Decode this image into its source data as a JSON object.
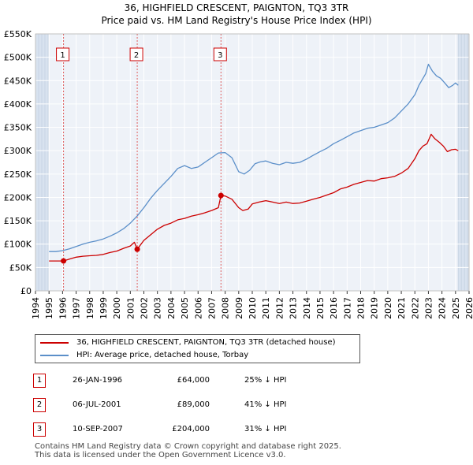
{
  "title_line1": "36, HIGHFIELD CRESCENT, PAIGNTON, TQ3 3TR",
  "title_line2": "Price paid vs. HM Land Registry's House Price Index (HPI)",
  "chart_data": {
    "type": "line",
    "xlim": [
      1994,
      2026
    ],
    "ylim": [
      0,
      550000
    ],
    "x_ticks": [
      1994,
      1995,
      1996,
      1997,
      1998,
      1999,
      2000,
      2001,
      2002,
      2003,
      2004,
      2005,
      2006,
      2007,
      2008,
      2009,
      2010,
      2011,
      2012,
      2013,
      2014,
      2015,
      2016,
      2017,
      2018,
      2019,
      2020,
      2021,
      2022,
      2023,
      2024,
      2025,
      2026
    ],
    "x_tick_labels": [
      "1994",
      "1995",
      "1996",
      "1997",
      "1998",
      "1999",
      "2000",
      "2001",
      "2002",
      "2003",
      "2004",
      "2005",
      "2006",
      "2007",
      "2008",
      "2009",
      "2010",
      "2011",
      "2012",
      "2013",
      "2014",
      "2015",
      "2016",
      "2017",
      "2018",
      "2019",
      "2020",
      "2021",
      "2022",
      "2023",
      "2024",
      "2025",
      "2026"
    ],
    "y_ticks": [
      0,
      50000,
      100000,
      150000,
      200000,
      250000,
      300000,
      350000,
      400000,
      450000,
      500000,
      550000
    ],
    "y_tick_labels": [
      "£0",
      "£50K",
      "£100K",
      "£150K",
      "£200K",
      "£250K",
      "£300K",
      "£350K",
      "£400K",
      "£450K",
      "£500K",
      "£550K"
    ],
    "data_range": [
      1995.0,
      2025.2
    ],
    "series": [
      {
        "name": "36, HIGHFIELD CRESCENT, PAIGNTON, TQ3 3TR (detached house)",
        "color": "#cc0000",
        "x": [
          1995.0,
          1995.5,
          1996.07,
          1996.5,
          1997.0,
          1997.5,
          1998.0,
          1998.5,
          1999.0,
          1999.5,
          2000.0,
          2000.5,
          2001.0,
          2001.3,
          2001.51,
          2002.0,
          2002.5,
          2003.0,
          2003.5,
          2004.0,
          2004.5,
          2005.0,
          2005.5,
          2006.0,
          2006.5,
          2007.0,
          2007.5,
          2007.69,
          2008.0,
          2008.5,
          2009.0,
          2009.3,
          2009.7,
          2010.0,
          2010.5,
          2011.0,
          2011.5,
          2012.0,
          2012.5,
          2013.0,
          2013.5,
          2014.0,
          2014.5,
          2015.0,
          2015.5,
          2016.0,
          2016.5,
          2017.0,
          2017.5,
          2018.0,
          2018.5,
          2019.0,
          2019.5,
          2020.0,
          2020.5,
          2021.0,
          2021.5,
          2022.0,
          2022.3,
          2022.6,
          2022.9,
          2023.2,
          2023.5,
          2023.8,
          2024.1,
          2024.4,
          2024.7,
          2025.0,
          2025.2
        ],
        "values": [
          64000,
          64000,
          64000,
          68000,
          72000,
          74000,
          75000,
          76000,
          78000,
          82000,
          85000,
          91000,
          96000,
          104000,
          89000,
          108000,
          120000,
          132000,
          140000,
          145000,
          152000,
          155000,
          160000,
          163000,
          167000,
          172000,
          178000,
          204000,
          203000,
          196000,
          178000,
          172000,
          175000,
          186000,
          190000,
          193000,
          190000,
          187000,
          190000,
          187000,
          188000,
          192000,
          196000,
          200000,
          205000,
          210000,
          218000,
          222000,
          228000,
          232000,
          236000,
          235000,
          240000,
          242000,
          245000,
          252000,
          262000,
          283000,
          300000,
          310000,
          315000,
          335000,
          325000,
          318000,
          310000,
          298000,
          302000,
          303000,
          300000
        ]
      },
      {
        "name": "HPI: Average price, detached house, Torbay",
        "color": "#5b8fc9",
        "x": [
          1995.0,
          1995.5,
          1996.0,
          1996.5,
          1997.0,
          1997.5,
          1998.0,
          1998.5,
          1999.0,
          1999.5,
          2000.0,
          2000.5,
          2001.0,
          2001.5,
          2002.0,
          2002.5,
          2003.0,
          2003.5,
          2004.0,
          2004.5,
          2005.0,
          2005.5,
          2006.0,
          2006.5,
          2007.0,
          2007.5,
          2008.0,
          2008.5,
          2009.0,
          2009.4,
          2009.8,
          2010.2,
          2010.6,
          2011.0,
          2011.5,
          2012.0,
          2012.5,
          2013.0,
          2013.5,
          2014.0,
          2014.5,
          2015.0,
          2015.5,
          2016.0,
          2016.5,
          2017.0,
          2017.5,
          2018.0,
          2018.5,
          2019.0,
          2019.5,
          2020.0,
          2020.5,
          2021.0,
          2021.5,
          2022.0,
          2022.3,
          2022.6,
          2022.8,
          2023.0,
          2023.3,
          2023.6,
          2023.9,
          2024.2,
          2024.5,
          2024.8,
          2025.0,
          2025.2
        ],
        "values": [
          84000,
          84000,
          86000,
          90000,
          95000,
          100000,
          104000,
          107000,
          111000,
          117000,
          124000,
          133000,
          145000,
          160000,
          178000,
          198000,
          215000,
          230000,
          245000,
          262000,
          268000,
          262000,
          265000,
          275000,
          285000,
          295000,
          296000,
          285000,
          255000,
          250000,
          258000,
          272000,
          276000,
          278000,
          273000,
          270000,
          275000,
          273000,
          275000,
          282000,
          290000,
          298000,
          305000,
          315000,
          322000,
          330000,
          338000,
          343000,
          348000,
          350000,
          355000,
          360000,
          370000,
          385000,
          400000,
          420000,
          440000,
          455000,
          465000,
          485000,
          470000,
          460000,
          455000,
          445000,
          435000,
          440000,
          445000,
          440000
        ]
      }
    ],
    "sales": [
      {
        "label": "1",
        "x": 1996.07,
        "value": 64000
      },
      {
        "label": "2",
        "x": 2001.51,
        "value": 89000
      },
      {
        "label": "3",
        "x": 2007.69,
        "value": 204000
      }
    ],
    "grid": true
  },
  "legend": {
    "property_label": "36, HIGHFIELD CRESCENT, PAIGNTON, TQ3 3TR (detached house)",
    "hpi_label": "HPI: Average price, detached house, Torbay"
  },
  "transactions": [
    {
      "num": "1",
      "date": "26-JAN-1996",
      "price": "£64,000",
      "hpi": "25% ↓ HPI"
    },
    {
      "num": "2",
      "date": "06-JUL-2001",
      "price": "£89,000",
      "hpi": "41% ↓ HPI"
    },
    {
      "num": "3",
      "date": "10-SEP-2007",
      "price": "£204,000",
      "hpi": "31% ↓ HPI"
    }
  ],
  "footer_line1": "Contains HM Land Registry data © Crown copyright and database right 2025.",
  "footer_line2": "This data is licensed under the Open Government Licence v3.0.",
  "colors": {
    "property": "#cc0000",
    "hpi": "#5b8fc9",
    "plot_bg": "#eef2f8",
    "shade": "#d8e2ef"
  }
}
